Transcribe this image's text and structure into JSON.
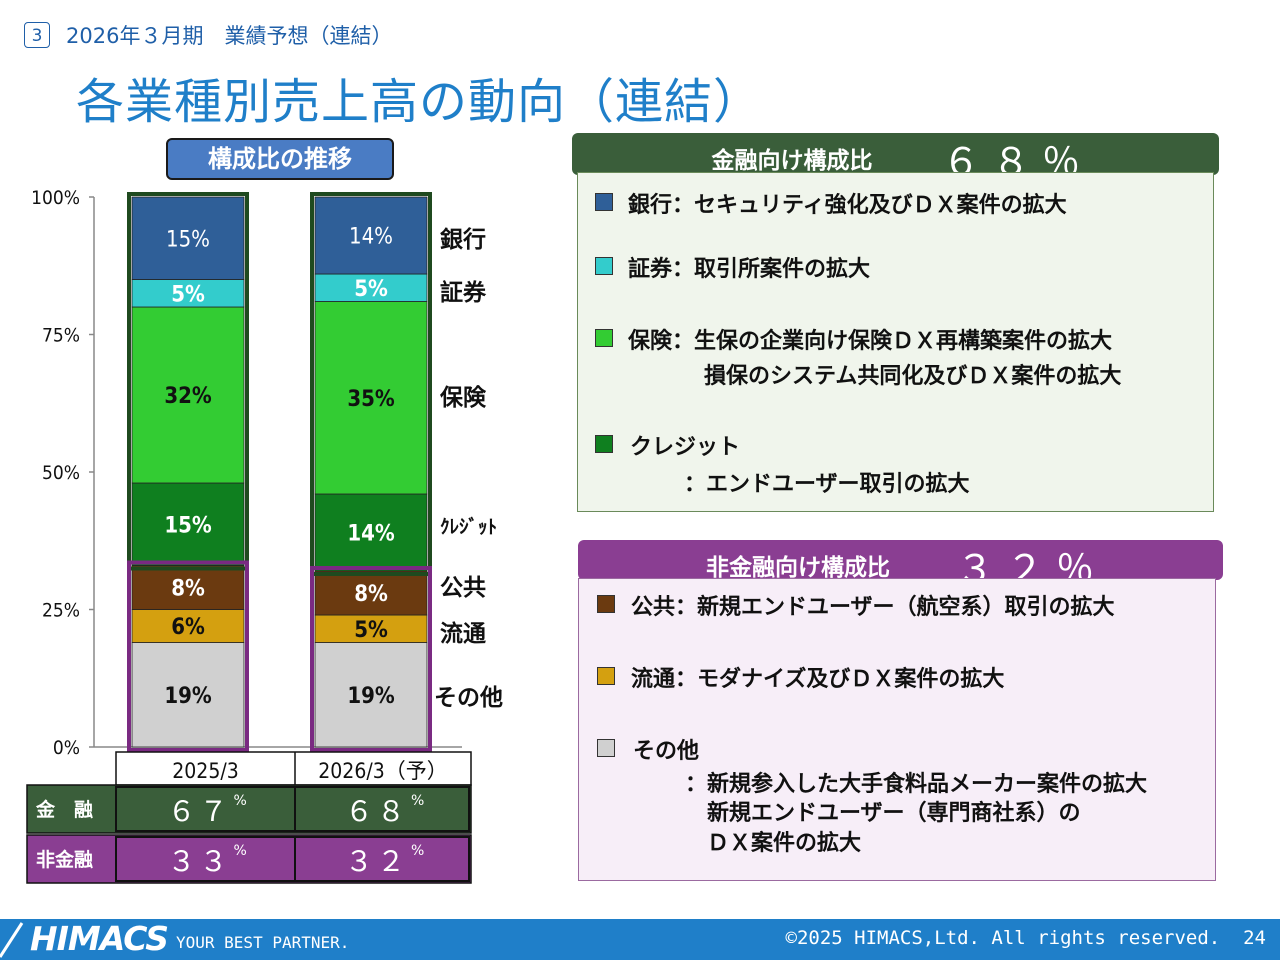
{
  "header": {
    "section_number": "3",
    "subtitle": "2026年３月期　業績予想（連結）",
    "title": "各業種別売上高の動向（連結）"
  },
  "trend_label": "構成比の推移",
  "chart_data": {
    "type": "bar",
    "stacked": true,
    "categories": [
      "2025/3",
      "2026/3（予）"
    ],
    "yticks": [
      "100%",
      "75%",
      "50%",
      "25%",
      "0%"
    ],
    "ylim": [
      0,
      100
    ],
    "series": [
      {
        "name": "その他",
        "color": "#d0d0d0",
        "values": [
          19,
          19
        ],
        "labels": [
          "19%",
          "19%"
        ]
      },
      {
        "name": "流通",
        "color": "#d4a010",
        "values": [
          6,
          5
        ],
        "labels": [
          "6%",
          "5%"
        ]
      },
      {
        "name": "公共",
        "color": "#6b3a10",
        "values": [
          8,
          8
        ],
        "labels": [
          "8%",
          "8%"
        ]
      },
      {
        "name": "クレジット",
        "color": "#0f7f1f",
        "values": [
          15,
          14
        ],
        "labels": [
          "15%",
          "14%"
        ]
      },
      {
        "name": "保険",
        "color": "#33cc33",
        "values": [
          32,
          35
        ],
        "labels": [
          "32%",
          "35%"
        ]
      },
      {
        "name": "証券",
        "color": "#33cccc",
        "values": [
          5,
          5
        ],
        "labels": [
          "5%",
          "5%"
        ]
      },
      {
        "name": "銀行",
        "color": "#2f5f98",
        "values": [
          15,
          14
        ],
        "labels": [
          "15%",
          "14%"
        ]
      }
    ],
    "legend_placement": "right",
    "grid": false,
    "summary_table": {
      "rows": [
        {
          "label": "金　融",
          "values": [
            "６７",
            "６８"
          ],
          "unit": "%",
          "color": "#3a5e3a"
        },
        {
          "label": "非金融",
          "values": [
            "３３",
            "３２"
          ],
          "unit": "%",
          "color": "#8a3e92"
        }
      ]
    }
  },
  "financial_panel": {
    "label": "金融向け構成比",
    "percent": "６８％",
    "color": "#3a5e3a",
    "items": [
      {
        "color": "#2f5f98",
        "lines": [
          "銀行：セキュリティ強化及びＤＸ案件の拡大"
        ]
      },
      {
        "color": "#33cccc",
        "lines": [
          "証券：取引所案件の拡大"
        ]
      },
      {
        "color": "#33cc33",
        "lines": [
          "保険：生保の企業向け保険ＤＸ再構築案件の拡大",
          "損保のシステム共同化及びＤＸ案件の拡大"
        ]
      },
      {
        "color": "#0f7f1f",
        "lines": [
          "クレジット",
          "：エンドユーザー取引の拡大"
        ]
      }
    ]
  },
  "nonfinancial_panel": {
    "label": "非金融向け構成比",
    "percent": "３２％",
    "color": "#8a3e92",
    "items": [
      {
        "color": "#6b3a10",
        "lines": [
          "公共：新規エンドユーザー（航空系）取引の拡大"
        ]
      },
      {
        "color": "#d4a010",
        "lines": [
          "流通：モダナイズ及びＤＸ案件の拡大"
        ]
      },
      {
        "color": "#d0d0d0",
        "lines": [
          "その他",
          "：新規参入した大手食料品メーカー案件の拡大",
          "新規エンドユーザー（専門商社系）の",
          "ＤＸ案件の拡大"
        ]
      }
    ]
  },
  "footer": {
    "logo": "HIMACS",
    "tagline": "YOUR BEST PARTNER.",
    "copyright": "©2025 HIMACS,Ltd. All rights reserved.",
    "page": "24"
  }
}
